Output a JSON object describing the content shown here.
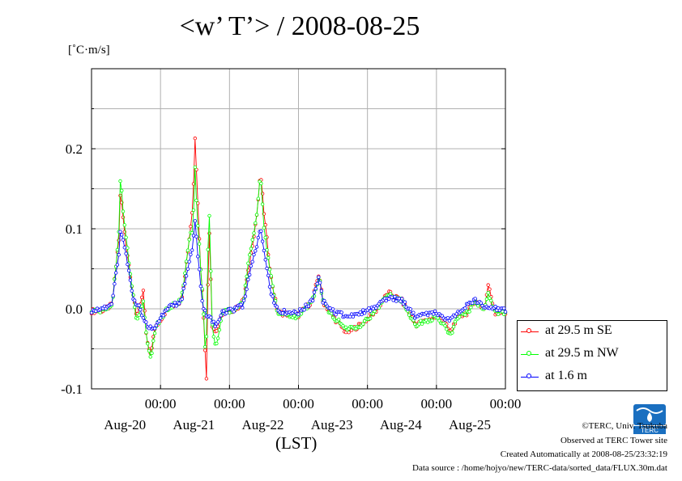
{
  "title": "<w’ T’> / 2008-08-25",
  "unit": "[˚C·m/s]",
  "x_center_label": "(LST)",
  "credits": {
    "copyright": "©TERC, Univ. Tsukuba",
    "observed": "Observed at TERC Tower site",
    "created": "Created Automatically at 2008-08-25/23:32:19",
    "source": "Data source : /home/hojyo/new/TERC-data/sorted_data/FLUX.30m.dat"
  },
  "logo_text": "TERC",
  "colors": {
    "se": "#ff0000",
    "nw": "#00ff00",
    "m16": "#0000ff",
    "grid": "#b0b0b0"
  },
  "chart_data": {
    "type": "line",
    "title": "<w’ T’> / 2008-08-25",
    "ylabel": "[˚C·m/s]",
    "xlabel": "(LST)",
    "xlim": [
      0,
      6
    ],
    "ylim": [
      -0.1,
      0.3
    ],
    "yticks": [
      {
        "value": -0.1,
        "label": "-0.1"
      },
      {
        "value": 0.0,
        "label": "0.0"
      },
      {
        "value": 0.1,
        "label": "0.1"
      },
      {
        "value": 0.2,
        "label": "0.2"
      }
    ],
    "xticks": [
      {
        "value": 1,
        "time": "00:00",
        "date": "Aug-20"
      },
      {
        "value": 2,
        "time": "00:00",
        "date": "Aug-21"
      },
      {
        "value": 3,
        "time": "00:00",
        "date": "Aug-22"
      },
      {
        "value": 4,
        "time": "00:00",
        "date": "Aug-23"
      },
      {
        "value": 5,
        "time": "00:00",
        "date": "Aug-24"
      },
      {
        "value": 6,
        "time": "00:00",
        "date": "Aug-25"
      }
    ],
    "grid": true,
    "legend_position": "right, outside plot",
    "series": [
      {
        "name": "at 29.5 m SE",
        "color": "#ff0000",
        "keypoints": [
          [
            0,
            -0.003
          ],
          [
            0.17,
            -0.002
          ],
          [
            0.3,
            0.005
          ],
          [
            0.35,
            0.05
          ],
          [
            0.4,
            0.09
          ],
          [
            0.42,
            0.15
          ],
          [
            0.45,
            0.12
          ],
          [
            0.5,
            0.08
          ],
          [
            0.55,
            0.05
          ],
          [
            0.6,
            0.02
          ],
          [
            0.65,
            -0.01
          ],
          [
            0.75,
            0.02
          ],
          [
            0.8,
            -0.04
          ],
          [
            0.86,
            -0.06
          ],
          [
            0.9,
            -0.03
          ],
          [
            0.95,
            -0.02
          ],
          [
            1.1,
            0.0
          ],
          [
            1.3,
            0.01
          ],
          [
            1.35,
            0.04
          ],
          [
            1.42,
            0.09
          ],
          [
            1.47,
            0.13
          ],
          [
            1.5,
            0.215
          ],
          [
            1.53,
            0.16
          ],
          [
            1.57,
            0.07
          ],
          [
            1.62,
            0.0
          ],
          [
            1.67,
            -0.095
          ],
          [
            1.7,
            0.12
          ],
          [
            1.75,
            -0.02
          ],
          [
            1.8,
            -0.03
          ],
          [
            1.9,
            -0.005
          ],
          [
            2.1,
            0.0
          ],
          [
            2.2,
            0.01
          ],
          [
            2.28,
            0.05
          ],
          [
            2.4,
            0.12
          ],
          [
            2.45,
            0.17
          ],
          [
            2.5,
            0.12
          ],
          [
            2.6,
            0.04
          ],
          [
            2.7,
            -0.005
          ],
          [
            3.0,
            -0.008
          ],
          [
            3.2,
            0.01
          ],
          [
            3.3,
            0.045
          ],
          [
            3.35,
            0.01
          ],
          [
            3.5,
            -0.01
          ],
          [
            3.7,
            -0.03
          ],
          [
            3.9,
            -0.02
          ],
          [
            4.1,
            -0.005
          ],
          [
            4.3,
            0.02
          ],
          [
            4.5,
            0.01
          ],
          [
            4.7,
            -0.02
          ],
          [
            5.0,
            -0.01
          ],
          [
            5.1,
            -0.015
          ],
          [
            5.2,
            -0.03
          ],
          [
            5.3,
            -0.01
          ],
          [
            5.45,
            -0.005
          ],
          [
            5.55,
            0.01
          ],
          [
            5.7,
            0.0
          ],
          [
            5.75,
            0.03
          ],
          [
            5.85,
            -0.005
          ],
          [
            6.0,
            -0.005
          ]
        ]
      },
      {
        "name": "at 29.5 m NW",
        "color": "#00ff00",
        "keypoints": [
          [
            0,
            -0.003
          ],
          [
            0.17,
            -0.002
          ],
          [
            0.3,
            0.005
          ],
          [
            0.35,
            0.05
          ],
          [
            0.4,
            0.1
          ],
          [
            0.42,
            0.175
          ],
          [
            0.45,
            0.13
          ],
          [
            0.5,
            0.09
          ],
          [
            0.55,
            0.05
          ],
          [
            0.6,
            0.02
          ],
          [
            0.65,
            -0.015
          ],
          [
            0.75,
            0.01
          ],
          [
            0.8,
            -0.04
          ],
          [
            0.86,
            -0.065
          ],
          [
            0.9,
            -0.035
          ],
          [
            0.95,
            -0.02
          ],
          [
            1.1,
            0.0
          ],
          [
            1.3,
            0.01
          ],
          [
            1.35,
            0.04
          ],
          [
            1.42,
            0.09
          ],
          [
            1.47,
            0.1
          ],
          [
            1.5,
            0.175
          ],
          [
            1.53,
            0.12
          ],
          [
            1.57,
            0.07
          ],
          [
            1.62,
            0.0
          ],
          [
            1.66,
            -0.07
          ],
          [
            1.7,
            0.14
          ],
          [
            1.75,
            -0.02
          ],
          [
            1.8,
            -0.05
          ],
          [
            1.9,
            -0.005
          ],
          [
            2.1,
            0.0
          ],
          [
            2.2,
            0.01
          ],
          [
            2.28,
            0.06
          ],
          [
            2.4,
            0.12
          ],
          [
            2.45,
            0.17
          ],
          [
            2.5,
            0.1
          ],
          [
            2.6,
            0.04
          ],
          [
            2.7,
            -0.005
          ],
          [
            3.0,
            -0.01
          ],
          [
            3.2,
            0.01
          ],
          [
            3.3,
            0.04
          ],
          [
            3.35,
            0.01
          ],
          [
            3.5,
            -0.01
          ],
          [
            3.7,
            -0.025
          ],
          [
            3.9,
            -0.02
          ],
          [
            4.1,
            -0.005
          ],
          [
            4.3,
            0.02
          ],
          [
            4.5,
            0.01
          ],
          [
            4.7,
            -0.02
          ],
          [
            5.0,
            -0.01
          ],
          [
            5.1,
            -0.02
          ],
          [
            5.2,
            -0.035
          ],
          [
            5.3,
            -0.01
          ],
          [
            5.45,
            -0.005
          ],
          [
            5.55,
            0.01
          ],
          [
            5.7,
            0.0
          ],
          [
            5.75,
            0.02
          ],
          [
            5.85,
            -0.005
          ],
          [
            6.0,
            -0.005
          ]
        ]
      },
      {
        "name": "at 1.6 m",
        "color": "#0000ff",
        "keypoints": [
          [
            0,
            -0.002
          ],
          [
            0.17,
            0.0
          ],
          [
            0.3,
            0.005
          ],
          [
            0.35,
            0.04
          ],
          [
            0.4,
            0.07
          ],
          [
            0.42,
            0.1
          ],
          [
            0.45,
            0.09
          ],
          [
            0.5,
            0.07
          ],
          [
            0.55,
            0.04
          ],
          [
            0.6,
            0.015
          ],
          [
            0.7,
            0.0
          ],
          [
            0.8,
            -0.02
          ],
          [
            0.9,
            -0.025
          ],
          [
            1.0,
            -0.01
          ],
          [
            1.1,
            0.0
          ],
          [
            1.3,
            0.01
          ],
          [
            1.35,
            0.03
          ],
          [
            1.42,
            0.06
          ],
          [
            1.47,
            0.08
          ],
          [
            1.5,
            0.11
          ],
          [
            1.53,
            0.08
          ],
          [
            1.57,
            0.04
          ],
          [
            1.62,
            0.0
          ],
          [
            1.7,
            -0.01
          ],
          [
            1.8,
            -0.02
          ],
          [
            1.9,
            -0.005
          ],
          [
            2.1,
            0.0
          ],
          [
            2.2,
            0.005
          ],
          [
            2.28,
            0.04
          ],
          [
            2.4,
            0.08
          ],
          [
            2.45,
            0.1
          ],
          [
            2.5,
            0.07
          ],
          [
            2.6,
            0.02
          ],
          [
            2.7,
            -0.003
          ],
          [
            3.0,
            -0.005
          ],
          [
            3.2,
            0.01
          ],
          [
            3.3,
            0.04
          ],
          [
            3.35,
            0.01
          ],
          [
            3.5,
            -0.003
          ],
          [
            3.7,
            -0.01
          ],
          [
            3.9,
            -0.005
          ],
          [
            4.1,
            0.0
          ],
          [
            4.3,
            0.015
          ],
          [
            4.5,
            0.01
          ],
          [
            4.7,
            -0.01
          ],
          [
            5.0,
            -0.005
          ],
          [
            5.1,
            -0.01
          ],
          [
            5.2,
            -0.015
          ],
          [
            5.3,
            -0.005
          ],
          [
            5.45,
            0.005
          ],
          [
            5.55,
            0.012
          ],
          [
            5.7,
            0.002
          ],
          [
            5.85,
            0.0
          ],
          [
            6.0,
            -0.002
          ]
        ]
      }
    ]
  }
}
